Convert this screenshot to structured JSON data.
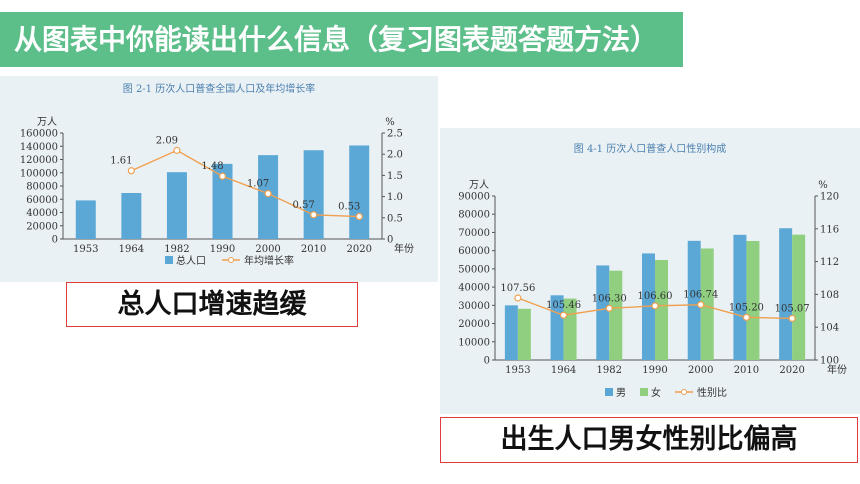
{
  "banner": {
    "title": "从图表中你能读出什么信息（复习图表题答题方法）"
  },
  "captions": {
    "left": "总人口增速趋缓",
    "right": "出生人口男女性别比偏高"
  },
  "colors": {
    "banner": "#5cbf8a",
    "bar_primary": "#5ba8d6",
    "bar_secondary": "#8fcf7f",
    "line": "#f0a050",
    "caption_border": "#e23b3b"
  },
  "chart_data": [
    {
      "type": "bar",
      "title": "图 2-1  历次人口普查全国人口及年均增长率",
      "categories": [
        "1953",
        "1964",
        "1982",
        "1990",
        "2000",
        "2010",
        "2020"
      ],
      "xlabel": "年份",
      "ylabel": "万人",
      "ylim": [
        0,
        160000
      ],
      "yticks": [
        "0",
        "20000",
        "40000",
        "60000",
        "80000",
        "100000",
        "120000",
        "140000",
        "160000"
      ],
      "y2label": "%",
      "y2lim": [
        0,
        2.5
      ],
      "y2ticks": [
        "0",
        "0.5",
        "1.0",
        "1.5",
        "2.0",
        "2.5"
      ],
      "series": [
        {
          "name": "总人口",
          "type": "bar",
          "values": [
            58260,
            69458,
            100818,
            113368,
            126583,
            133972,
            141178
          ]
        },
        {
          "name": "年均增长率",
          "type": "line",
          "axis": "right",
          "values": [
            null,
            1.61,
            2.09,
            1.48,
            1.07,
            0.57,
            0.53
          ],
          "labels": [
            "",
            "1.61",
            "2.09",
            "1.48",
            "1.07",
            "0.57",
            "0.53"
          ]
        }
      ],
      "legend": "bottom",
      "grid": false
    },
    {
      "type": "bar",
      "title": "图 4-1  历次人口普查人口性别构成",
      "categories": [
        "1953",
        "1964",
        "1982",
        "1990",
        "2000",
        "2010",
        "2020"
      ],
      "xlabel": "年份",
      "ylabel": "万人",
      "ylim": [
        0,
        90000
      ],
      "yticks": [
        "0",
        "10000",
        "20000",
        "30000",
        "40000",
        "50000",
        "60000",
        "70000",
        "80000",
        "90000"
      ],
      "y2label": "%",
      "y2lim": [
        100,
        120
      ],
      "y2ticks": [
        "100",
        "104",
        "108",
        "112",
        "116",
        "120"
      ],
      "series": [
        {
          "name": "男",
          "type": "bar",
          "values": [
            30000,
            35500,
            51900,
            58500,
            65400,
            68700,
            72300
          ]
        },
        {
          "name": "女",
          "type": "bar",
          "values": [
            28100,
            33700,
            49000,
            54900,
            61200,
            65300,
            68800
          ]
        },
        {
          "name": "性别比",
          "type": "line",
          "axis": "right",
          "values": [
            107.56,
            105.46,
            106.3,
            106.6,
            106.74,
            105.2,
            105.07
          ],
          "labels": [
            "107.56",
            "105.46",
            "106.30",
            "106.60",
            "106.74",
            "105.20",
            "105.07"
          ]
        }
      ],
      "legend": "bottom",
      "grid": false
    }
  ]
}
